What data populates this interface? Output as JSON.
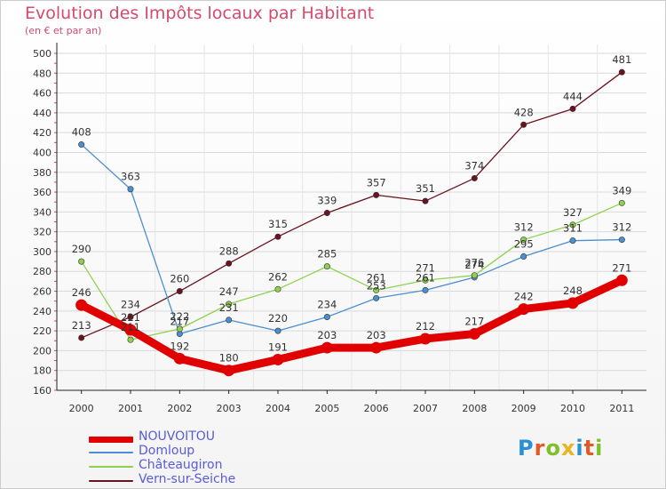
{
  "header": {
    "title": "Evolution des Impôts locaux par Habitant",
    "subtitle": "(en € et par an)"
  },
  "logo": {
    "letters": [
      {
        "ch": "P",
        "color": "#2b8fd6"
      },
      {
        "ch": "r",
        "color": "#e05a28"
      },
      {
        "ch": "o",
        "color": "#7fbf2a"
      },
      {
        "ch": "x",
        "color": "#e8b422"
      },
      {
        "ch": "i",
        "color": "#2b8fd6"
      },
      {
        "ch": "t",
        "color": "#e05a28"
      },
      {
        "ch": "i",
        "color": "#7fbf2a"
      }
    ]
  },
  "chart_data": {
    "type": "line",
    "title": "Evolution des Impôts locaux par Habitant",
    "subtitle": "(en € et par an)",
    "xlabel": "",
    "ylabel": "",
    "categories": [
      "2000",
      "2001",
      "2002",
      "2003",
      "2004",
      "2005",
      "2006",
      "2007",
      "2008",
      "2009",
      "2010",
      "2011"
    ],
    "ylim": [
      160,
      500
    ],
    "yticks": [
      160,
      180,
      200,
      220,
      240,
      260,
      280,
      300,
      320,
      340,
      360,
      380,
      400,
      420,
      440,
      460,
      480,
      500
    ],
    "grid": true,
    "legend_position": "bottom-left",
    "series": [
      {
        "name": "Vern-sur-Seiche",
        "color": "#6b1220",
        "weight": "thin",
        "values": [
          213,
          234,
          260,
          288,
          315,
          339,
          357,
          351,
          374,
          428,
          444,
          481
        ],
        "labels": [
          "213",
          "234",
          "260",
          "288",
          "315",
          "339",
          "357",
          "351",
          "374",
          "428",
          "444",
          "481"
        ]
      },
      {
        "name": "Domloup",
        "color": "#4a8fcf",
        "weight": "thin",
        "values": [
          408,
          363,
          217,
          231,
          220,
          234,
          253,
          261,
          274,
          295,
          311,
          312
        ],
        "labels": [
          "408",
          "363",
          "217",
          "231",
          "220",
          "234",
          "253",
          "261",
          "274",
          "295",
          "311",
          "312"
        ]
      },
      {
        "name": "Châteaugiron",
        "color": "#8fd14f",
        "weight": "thin",
        "values": [
          290,
          211,
          222,
          247,
          262,
          285,
          261,
          271,
          276,
          312,
          327,
          349
        ],
        "labels": [
          "290",
          "211",
          "222",
          "247",
          "262",
          "285",
          "261",
          "271",
          "276",
          "312",
          "327",
          "349"
        ]
      },
      {
        "name": "NOUVOITOU",
        "color": "#e00000",
        "weight": "thick",
        "values": [
          246,
          221,
          192,
          180,
          191,
          203,
          203,
          212,
          217,
          242,
          248,
          271
        ],
        "labels": [
          "246",
          "221",
          "192",
          "180",
          "191",
          "203",
          "203",
          "212",
          "217",
          "242",
          "248",
          "271"
        ]
      }
    ],
    "legend_order": [
      "NOUVOITOU",
      "Domloup",
      "Châteaugiron",
      "Vern-sur-Seiche"
    ]
  }
}
